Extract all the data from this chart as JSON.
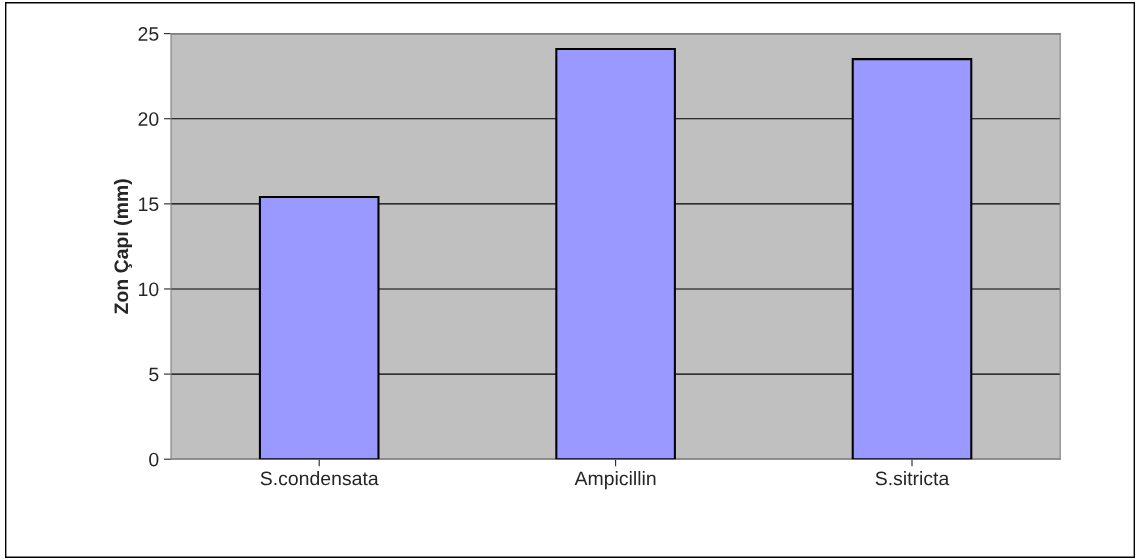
{
  "chart_data": {
    "type": "bar",
    "ylabel": "Zon Çapı (mm)",
    "categories": [
      "S.condensata",
      "Ampicillin",
      "S.sitricta"
    ],
    "values": [
      15.4,
      24.1,
      23.5
    ],
    "color": "#9999ff",
    "ylim": [
      0,
      25
    ],
    "yticks": [
      0,
      5,
      10,
      15,
      20,
      25
    ],
    "grid": "y"
  }
}
